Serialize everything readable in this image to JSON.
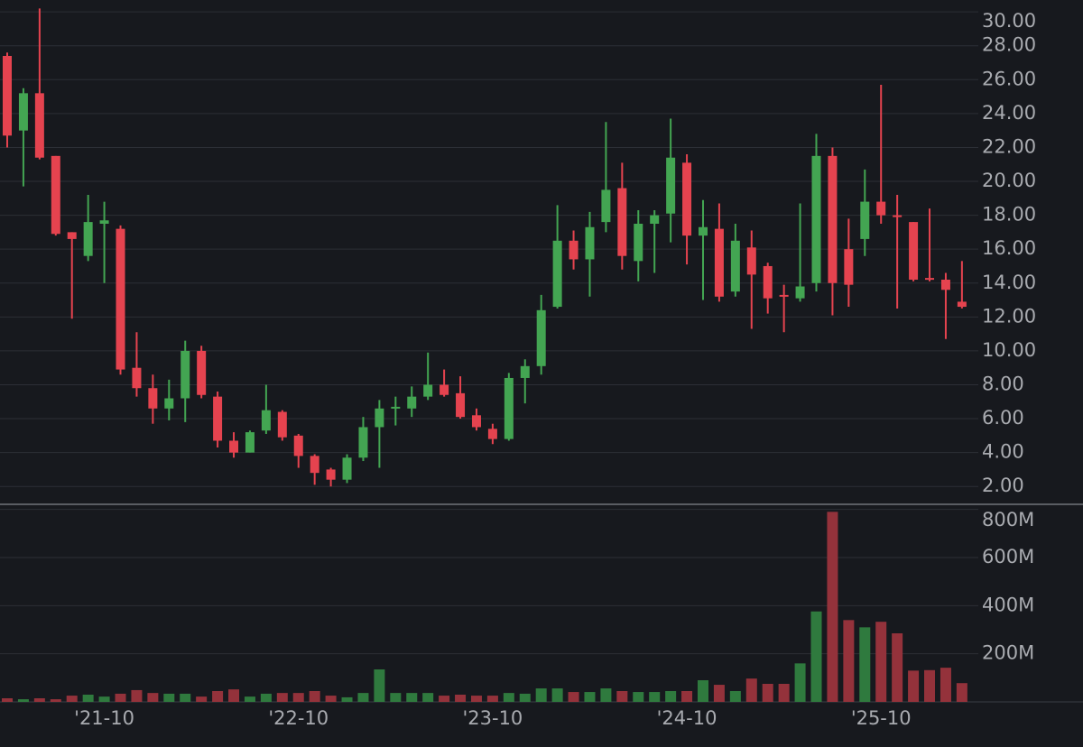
{
  "chart_data": {
    "type": "candlestick",
    "categories": [
      null,
      null,
      null,
      null,
      null,
      null,
      "'21-10",
      null,
      null,
      null,
      null,
      null,
      null,
      null,
      null,
      null,
      null,
      null,
      "'22-10",
      null,
      null,
      null,
      null,
      null,
      null,
      null,
      null,
      null,
      null,
      null,
      "'23-10",
      null,
      null,
      null,
      null,
      null,
      null,
      null,
      null,
      null,
      null,
      null,
      "'24-10",
      null,
      null,
      null,
      null,
      null,
      null,
      null,
      null,
      null,
      null,
      null,
      "'25-10",
      null,
      null,
      null,
      null,
      null
    ],
    "open": [
      27.4,
      23.0,
      25.2,
      21.5,
      17.0,
      15.6,
      17.5,
      17.2,
      9.0,
      7.8,
      6.6,
      7.2,
      10.0,
      7.3,
      4.7,
      4.0,
      5.3,
      6.4,
      5.0,
      3.8,
      3.0,
      2.4,
      3.7,
      5.5,
      6.6,
      6.6,
      7.3,
      8.0,
      7.5,
      6.2,
      5.4,
      4.8,
      8.4,
      9.1,
      12.6,
      16.5,
      15.4,
      17.6,
      19.6,
      15.3,
      17.5,
      18.1,
      21.1,
      16.8,
      17.2,
      13.5,
      16.1,
      15.0,
      13.3,
      13.1,
      14.0,
      21.5,
      16.0,
      16.6,
      18.8,
      18.0,
      17.6,
      14.3,
      14.2,
      12.9
    ],
    "high": [
      27.6,
      25.5,
      30.2,
      21.5,
      17.0,
      19.2,
      18.8,
      17.4,
      11.1,
      8.6,
      8.3,
      10.6,
      10.3,
      7.6,
      5.2,
      5.3,
      8.0,
      6.5,
      5.1,
      3.9,
      3.1,
      3.9,
      6.1,
      7.1,
      7.3,
      7.9,
      9.9,
      8.9,
      8.5,
      6.6,
      5.7,
      8.7,
      9.5,
      13.3,
      18.6,
      17.1,
      18.2,
      23.5,
      21.1,
      18.3,
      18.3,
      23.7,
      21.6,
      18.9,
      18.7,
      17.5,
      17.1,
      15.2,
      13.9,
      18.7,
      22.8,
      22.0,
      17.8,
      20.7,
      25.7,
      19.2,
      17.6,
      18.4,
      14.6,
      15.3
    ],
    "low": [
      22.0,
      19.7,
      21.3,
      16.8,
      11.9,
      15.3,
      14.0,
      8.6,
      7.3,
      5.7,
      5.9,
      5.8,
      7.2,
      4.3,
      3.7,
      4.0,
      5.1,
      4.7,
      3.1,
      2.1,
      2.0,
      2.2,
      3.5,
      3.1,
      5.6,
      6.1,
      7.1,
      7.3,
      6.0,
      5.3,
      4.5,
      4.7,
      6.9,
      8.6,
      12.5,
      14.8,
      13.2,
      17.0,
      14.8,
      14.1,
      14.6,
      16.4,
      15.1,
      13.0,
      12.9,
      13.2,
      11.3,
      12.2,
      11.1,
      12.9,
      13.5,
      12.1,
      12.6,
      15.6,
      17.5,
      12.5,
      14.1,
      14.1,
      10.7,
      12.5
    ],
    "close": [
      22.7,
      25.2,
      21.4,
      16.9,
      16.6,
      17.6,
      17.7,
      8.9,
      7.8,
      6.6,
      7.2,
      10.0,
      7.4,
      4.7,
      4.0,
      5.2,
      6.5,
      4.9,
      3.8,
      2.8,
      2.4,
      3.7,
      5.5,
      6.6,
      6.7,
      7.3,
      8.0,
      7.4,
      6.1,
      5.5,
      4.8,
      8.4,
      9.1,
      12.4,
      16.5,
      15.4,
      17.3,
      19.5,
      15.6,
      17.5,
      18.0,
      21.4,
      16.8,
      17.3,
      13.2,
      16.5,
      14.5,
      13.1,
      13.2,
      13.8,
      21.5,
      14.0,
      13.9,
      18.8,
      18.0,
      17.9,
      14.2,
      14.2,
      13.6,
      12.6
    ],
    "ylim": [
      1,
      30.7
    ],
    "yticks": [
      {
        "value": 2,
        "label": "2.00"
      },
      {
        "value": 4,
        "label": "4.00"
      },
      {
        "value": 6,
        "label": "6.00"
      },
      {
        "value": 8,
        "label": "8.00"
      },
      {
        "value": 10,
        "label": "10.00"
      },
      {
        "value": 12,
        "label": "12.00"
      },
      {
        "value": 14,
        "label": "14.00"
      },
      {
        "value": 16,
        "label": "16.00"
      },
      {
        "value": 18,
        "label": "18.00"
      },
      {
        "value": 20,
        "label": "20.00"
      },
      {
        "value": 22,
        "label": "22.00"
      },
      {
        "value": 24,
        "label": "24.00"
      },
      {
        "value": 26,
        "label": "26.00"
      },
      {
        "value": 28,
        "label": "28.00"
      },
      {
        "value": 30,
        "label": "30.00"
      }
    ],
    "up_color": "#43a552",
    "down_color": "#e5434f",
    "volume": {
      "values": [
        15000000,
        11000000,
        15000000,
        11000000,
        26000000,
        30000000,
        22000000,
        34000000,
        49000000,
        37000000,
        34000000,
        34000000,
        22000000,
        45000000,
        52000000,
        22000000,
        34000000,
        37000000,
        37000000,
        45000000,
        26000000,
        19000000,
        37000000,
        135000000,
        37000000,
        37000000,
        37000000,
        26000000,
        30000000,
        26000000,
        26000000,
        37000000,
        34000000,
        56000000,
        56000000,
        41000000,
        41000000,
        56000000,
        45000000,
        41000000,
        41000000,
        45000000,
        45000000,
        90000000,
        71000000,
        45000000,
        97000000,
        75000000,
        75000000,
        160000000,
        376000000,
        790000000,
        340000000,
        310000000,
        333000000,
        285000000,
        130000000,
        132000000,
        142000000,
        78000000
      ],
      "ylim": [
        0,
        817500000
      ],
      "yticks": [
        {
          "value": 200000000,
          "label": "200M"
        },
        {
          "value": 400000000,
          "label": "400M"
        },
        {
          "value": 600000000,
          "label": "600M"
        },
        {
          "value": 800000000,
          "label": "800M"
        }
      ],
      "up_color": "#2f7a3e",
      "down_color": "#94323b"
    },
    "grid": true
  }
}
